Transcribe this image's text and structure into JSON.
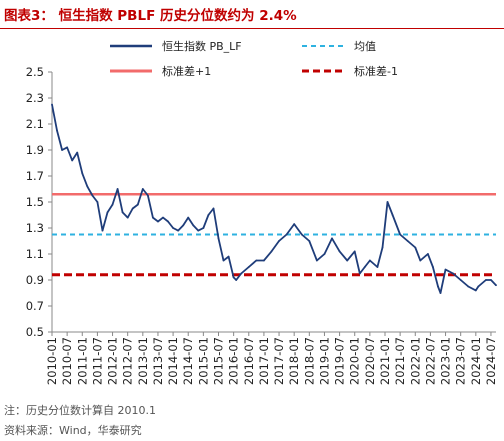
{
  "header": {
    "title": "图表3：  恒生指数 PBLF 历史分位数约为 2.4%"
  },
  "footer": {
    "note": "注：历史分位数计算自 2010.1",
    "source": "资料来源：Wind，华泰研究"
  },
  "colors": {
    "title": "#c00000",
    "series": "#1f3d7a",
    "mean": "#2eb2e0",
    "upper": "#f26b6b",
    "lower": "#c00000"
  },
  "chart_data": {
    "type": "line",
    "title": "",
    "xlabel": "",
    "ylabel": "",
    "ylim": [
      0.5,
      2.5
    ],
    "yticks": [
      "2.5",
      "2.3",
      "2.1",
      "1.9",
      "1.7",
      "1.5",
      "1.3",
      "1.1",
      "0.9",
      "0.7",
      "0.5"
    ],
    "xticks": [
      "2010-01",
      "2010-07",
      "2011-01",
      "2011-07",
      "2012-01",
      "2012-07",
      "2013-01",
      "2013-07",
      "2014-01",
      "2014-07",
      "2015-01",
      "2015-07",
      "2016-01",
      "2016-07",
      "2017-01",
      "2017-07",
      "2018-01",
      "2018-07",
      "2019-01",
      "2019-07",
      "2020-01",
      "2020-07",
      "2021-01",
      "2021-07",
      "2022-01",
      "2022-07",
      "2023-01",
      "2023-07",
      "2024-01",
      "2024-07"
    ],
    "legend_position": "top",
    "legend": [
      "恒生指数 PB_LF",
      "均值",
      "标准差+1",
      "标准差-1"
    ],
    "series": [
      {
        "name": "恒生指数 PB_LF",
        "style": "solid",
        "x": [
          "2010-01",
          "2010-03",
          "2010-05",
          "2010-07",
          "2010-09",
          "2010-11",
          "2011-01",
          "2011-03",
          "2011-05",
          "2011-07",
          "2011-09",
          "2011-11",
          "2012-01",
          "2012-03",
          "2012-05",
          "2012-07",
          "2012-09",
          "2012-11",
          "2013-01",
          "2013-03",
          "2013-05",
          "2013-07",
          "2013-09",
          "2013-11",
          "2014-01",
          "2014-03",
          "2014-05",
          "2014-07",
          "2014-09",
          "2014-11",
          "2015-01",
          "2015-03",
          "2015-05",
          "2015-07",
          "2015-09",
          "2015-11",
          "2016-01",
          "2016-02",
          "2016-04",
          "2016-07",
          "2016-10",
          "2017-01",
          "2017-04",
          "2017-07",
          "2017-10",
          "2018-01",
          "2018-04",
          "2018-07",
          "2018-10",
          "2019-01",
          "2019-04",
          "2019-07",
          "2019-10",
          "2020-01",
          "2020-03",
          "2020-05",
          "2020-07",
          "2020-10",
          "2020-12",
          "2021-02",
          "2021-04",
          "2021-07",
          "2021-10",
          "2022-01",
          "2022-03",
          "2022-06",
          "2022-08",
          "2022-10",
          "2022-11",
          "2023-01",
          "2023-04",
          "2023-07",
          "2023-10",
          "2024-01",
          "2024-02",
          "2024-05",
          "2024-07",
          "2024-09"
        ],
        "values": [
          2.25,
          2.05,
          1.9,
          1.92,
          1.82,
          1.88,
          1.72,
          1.62,
          1.55,
          1.5,
          1.28,
          1.42,
          1.48,
          1.6,
          1.42,
          1.38,
          1.45,
          1.48,
          1.6,
          1.55,
          1.38,
          1.35,
          1.38,
          1.35,
          1.3,
          1.28,
          1.32,
          1.38,
          1.32,
          1.28,
          1.3,
          1.4,
          1.45,
          1.22,
          1.05,
          1.08,
          0.92,
          0.9,
          0.95,
          1.0,
          1.05,
          1.05,
          1.12,
          1.2,
          1.25,
          1.33,
          1.25,
          1.2,
          1.05,
          1.1,
          1.22,
          1.12,
          1.05,
          1.12,
          0.95,
          1.0,
          1.05,
          1.0,
          1.15,
          1.5,
          1.4,
          1.25,
          1.2,
          1.15,
          1.05,
          1.1,
          1.0,
          0.85,
          0.8,
          0.98,
          0.95,
          0.9,
          0.85,
          0.82,
          0.85,
          0.9,
          0.9,
          0.86
        ]
      },
      {
        "name": "均值",
        "style": "dashed",
        "value": 1.25
      },
      {
        "name": "标准差+1",
        "style": "solid",
        "value": 1.56
      },
      {
        "name": "标准差-1",
        "style": "dashed",
        "value": 0.94
      }
    ]
  }
}
